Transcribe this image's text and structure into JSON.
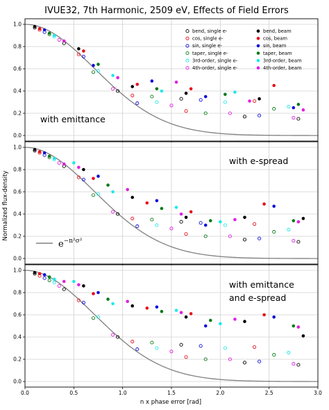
{
  "title": "IVUE32, 7th Harmonic, 2509 eV, Effects of Field Errors",
  "xlabel": "n x phase error [rad]",
  "ylabel": "Normalized flux-density",
  "formula": {
    "base": "e",
    "exponent": "−n²σ²"
  },
  "colors": {
    "bend": "#000000",
    "cos": "#e8101a",
    "sin": "#1010d8",
    "taper": "#0a7a1a",
    "third": "#20e8e8",
    "fourth": "#e020e0",
    "curve": "#808080"
  },
  "legend": [
    {
      "label": "bend, single e-",
      "series": "bend",
      "style": "open"
    },
    {
      "label": "bend, beam",
      "series": "bend",
      "style": "filled"
    },
    {
      "label": "cos, single e-",
      "series": "cos",
      "style": "open"
    },
    {
      "label": "cos, beam",
      "series": "cos",
      "style": "filled"
    },
    {
      "label": "sin, single e-",
      "series": "sin",
      "style": "open"
    },
    {
      "label": "sin, beam",
      "series": "sin",
      "style": "filled"
    },
    {
      "label": "taper, single e-",
      "series": "taper",
      "style": "open"
    },
    {
      "label": "taper, beam",
      "series": "taper",
      "style": "filled"
    },
    {
      "label": "3rd-order, single e-",
      "series": "third",
      "style": "open"
    },
    {
      "label": "3rd-order, beam",
      "series": "third",
      "style": "filled"
    },
    {
      "label": "4th-order, single e-",
      "series": "fourth",
      "style": "open"
    },
    {
      "label": "4th-order, beam",
      "series": "fourth",
      "style": "filled"
    }
  ],
  "chart_data": [
    {
      "type": "scatter",
      "annotation": [
        "with emittance"
      ],
      "xlim": [
        0,
        3.0
      ],
      "ylim": [
        -0.05,
        1.05
      ],
      "xticks": [
        "0.0",
        "0.5",
        "1.0",
        "1.5",
        "2.0",
        "2.5",
        "3.0"
      ],
      "yticks": [
        "0.0",
        "0.2",
        "0.4",
        "0.6",
        "0.8",
        "1.0"
      ],
      "grid": true,
      "single": {
        "x": [
          0.1,
          0.15,
          0.2,
          0.25,
          0.3,
          0.35,
          0.4,
          0.55,
          0.6,
          0.7,
          0.75,
          0.9,
          0.95,
          1.1,
          1.15,
          1.3,
          1.35,
          1.5,
          1.6,
          1.65,
          1.8,
          1.85,
          2.05,
          2.1,
          2.25,
          2.35,
          2.4,
          2.55,
          2.7,
          2.75,
          2.8
        ],
        "y": [
          0.97,
          0.95,
          0.93,
          0.91,
          0.89,
          0.86,
          0.83,
          0.73,
          0.71,
          0.57,
          0.58,
          0.42,
          0.4,
          0.36,
          0.29,
          0.35,
          0.3,
          0.27,
          0.33,
          0.22,
          0.32,
          0.2,
          0.3,
          0.2,
          0.17,
          0.31,
          0.18,
          0.24,
          0.26,
          0.16,
          0.15
        ],
        "series": [
          "bend",
          "cos",
          "sin",
          "taper",
          "third",
          "fourth",
          "bend",
          "cos",
          "sin",
          "taper",
          "third",
          "fourth",
          "bend",
          "cos",
          "sin",
          "taper",
          "third",
          "fourth",
          "bend",
          "cos",
          "sin",
          "taper",
          "third",
          "fourth",
          "bend",
          "cos",
          "sin",
          "taper",
          "third",
          "fourth",
          "bend"
        ]
      },
      "beam": {
        "x": [
          0.1,
          0.15,
          0.2,
          0.25,
          0.3,
          0.4,
          0.55,
          0.6,
          0.7,
          0.75,
          0.9,
          0.95,
          1.1,
          1.15,
          1.3,
          1.35,
          1.4,
          1.55,
          1.65,
          1.7,
          1.85,
          2.05,
          2.15,
          2.3,
          2.4,
          2.55,
          2.75,
          2.8,
          2.85
        ],
        "y": [
          0.98,
          0.96,
          0.95,
          0.92,
          0.9,
          0.85,
          0.78,
          0.76,
          0.63,
          0.64,
          0.54,
          0.52,
          0.44,
          0.46,
          0.49,
          0.42,
          0.4,
          0.48,
          0.38,
          0.42,
          0.35,
          0.37,
          0.39,
          0.31,
          0.33,
          0.45,
          0.25,
          0.28,
          0.23
        ],
        "series": [
          "bend",
          "cos",
          "sin",
          "taper",
          "third",
          "fourth",
          "bend",
          "cos",
          "sin",
          "taper",
          "third",
          "fourth",
          "bend",
          "cos",
          "sin",
          "taper",
          "third",
          "fourth",
          "bend",
          "cos",
          "sin",
          "taper",
          "third",
          "fourth",
          "bend",
          "cos",
          "sin",
          "taper",
          "fourth"
        ]
      }
    },
    {
      "type": "scatter",
      "annotation": [
        "with e-spread"
      ],
      "xlim": [
        0,
        3.0
      ],
      "ylim": [
        -0.05,
        1.05
      ],
      "xticks": [
        "0.0",
        "0.5",
        "1.0",
        "1.5",
        "2.0",
        "2.5",
        "3.0"
      ],
      "yticks": [
        "0.0",
        "0.2",
        "0.4",
        "0.6",
        "0.8",
        "1.0"
      ],
      "grid": true,
      "single": {
        "x": [
          0.1,
          0.15,
          0.2,
          0.25,
          0.3,
          0.35,
          0.4,
          0.55,
          0.6,
          0.7,
          0.75,
          0.9,
          0.95,
          1.1,
          1.15,
          1.3,
          1.35,
          1.5,
          1.6,
          1.65,
          1.8,
          1.85,
          2.05,
          2.1,
          2.25,
          2.35,
          2.4,
          2.55,
          2.7,
          2.75,
          2.8
        ],
        "y": [
          0.97,
          0.95,
          0.93,
          0.91,
          0.89,
          0.86,
          0.83,
          0.73,
          0.71,
          0.57,
          0.58,
          0.42,
          0.4,
          0.36,
          0.29,
          0.35,
          0.3,
          0.27,
          0.33,
          0.22,
          0.32,
          0.2,
          0.3,
          0.2,
          0.17,
          0.31,
          0.18,
          0.24,
          0.26,
          0.16,
          0.15
        ],
        "series": [
          "bend",
          "cos",
          "sin",
          "taper",
          "third",
          "fourth",
          "bend",
          "cos",
          "sin",
          "taper",
          "third",
          "fourth",
          "bend",
          "cos",
          "sin",
          "taper",
          "third",
          "fourth",
          "bend",
          "cos",
          "sin",
          "taper",
          "third",
          "fourth",
          "bend",
          "cos",
          "sin",
          "taper",
          "third",
          "fourth",
          "bend"
        ]
      },
      "beam": {
        "x": [
          0.1,
          0.15,
          0.2,
          0.25,
          0.3,
          0.4,
          0.5,
          0.55,
          0.6,
          0.7,
          0.75,
          0.85,
          0.9,
          1.05,
          1.1,
          1.25,
          1.35,
          1.4,
          1.55,
          1.6,
          1.65,
          1.7,
          1.85,
          1.9,
          2.0,
          2.15,
          2.25,
          2.45,
          2.55,
          2.75,
          2.8,
          2.85
        ],
        "y": [
          0.98,
          0.96,
          0.95,
          0.92,
          0.9,
          0.85,
          0.86,
          0.82,
          0.8,
          0.72,
          0.74,
          0.66,
          0.6,
          0.62,
          0.55,
          0.5,
          0.52,
          0.45,
          0.46,
          0.4,
          0.37,
          0.42,
          0.3,
          0.34,
          0.33,
          0.35,
          0.37,
          0.49,
          0.47,
          0.34,
          0.33,
          0.36
        ],
        "series": [
          "bend",
          "cos",
          "sin",
          "taper",
          "third",
          "fourth",
          "third",
          "fourth",
          "bend",
          "cos",
          "sin",
          "taper",
          "third",
          "fourth",
          "bend",
          "cos",
          "sin",
          "taper",
          "third",
          "fourth",
          "bend",
          "cos",
          "sin",
          "taper",
          "third",
          "fourth",
          "bend",
          "cos",
          "sin",
          "taper",
          "fourth",
          "bend"
        ]
      }
    },
    {
      "type": "scatter",
      "annotation": [
        "with emittance",
        "and e-spread"
      ],
      "xlim": [
        0,
        3.0
      ],
      "ylim": [
        -0.05,
        1.05
      ],
      "xticks": [
        "0.0",
        "0.5",
        "1.0",
        "1.5",
        "2.0",
        "2.5",
        "3.0"
      ],
      "yticks": [
        "0.0",
        "0.2",
        "0.4",
        "0.6",
        "0.8",
        "1.0"
      ],
      "grid": true,
      "single": {
        "x": [
          0.1,
          0.15,
          0.2,
          0.25,
          0.3,
          0.35,
          0.4,
          0.55,
          0.6,
          0.7,
          0.75,
          0.9,
          0.95,
          1.1,
          1.15,
          1.3,
          1.35,
          1.5,
          1.6,
          1.65,
          1.8,
          1.85,
          2.05,
          2.1,
          2.25,
          2.35,
          2.4,
          2.55,
          2.7,
          2.75,
          2.8
        ],
        "y": [
          0.97,
          0.95,
          0.93,
          0.91,
          0.89,
          0.86,
          0.83,
          0.73,
          0.71,
          0.57,
          0.58,
          0.42,
          0.4,
          0.36,
          0.29,
          0.35,
          0.3,
          0.27,
          0.33,
          0.22,
          0.32,
          0.2,
          0.3,
          0.2,
          0.17,
          0.31,
          0.18,
          0.24,
          0.26,
          0.16,
          0.15
        ],
        "series": [
          "bend",
          "cos",
          "sin",
          "taper",
          "third",
          "fourth",
          "bend",
          "cos",
          "sin",
          "taper",
          "third",
          "fourth",
          "bend",
          "cos",
          "sin",
          "taper",
          "third",
          "fourth",
          "bend",
          "cos",
          "sin",
          "taper",
          "third",
          "fourth",
          "bend",
          "cos",
          "sin",
          "taper",
          "third",
          "fourth",
          "bend"
        ]
      },
      "beam": {
        "x": [
          0.1,
          0.15,
          0.2,
          0.25,
          0.3,
          0.4,
          0.5,
          0.55,
          0.6,
          0.7,
          0.75,
          0.85,
          0.9,
          1.05,
          1.1,
          1.25,
          1.35,
          1.4,
          1.55,
          1.6,
          1.65,
          1.7,
          1.85,
          1.9,
          2.0,
          2.15,
          2.25,
          2.45,
          2.55,
          2.75,
          2.8,
          2.85
        ],
        "y": [
          0.98,
          0.97,
          0.96,
          0.94,
          0.92,
          0.9,
          0.9,
          0.87,
          0.86,
          0.79,
          0.8,
          0.74,
          0.7,
          0.72,
          0.68,
          0.66,
          0.67,
          0.63,
          0.64,
          0.62,
          0.58,
          0.61,
          0.5,
          0.55,
          0.52,
          0.56,
          0.54,
          0.6,
          0.58,
          0.5,
          0.49,
          0.41
        ],
        "series": [
          "bend",
          "cos",
          "sin",
          "taper",
          "third",
          "fourth",
          "third",
          "fourth",
          "bend",
          "cos",
          "sin",
          "taper",
          "third",
          "fourth",
          "bend",
          "cos",
          "sin",
          "taper",
          "third",
          "fourth",
          "bend",
          "cos",
          "sin",
          "taper",
          "third",
          "fourth",
          "bend",
          "cos",
          "sin",
          "taper",
          "fourth",
          "bend"
        ]
      }
    }
  ]
}
